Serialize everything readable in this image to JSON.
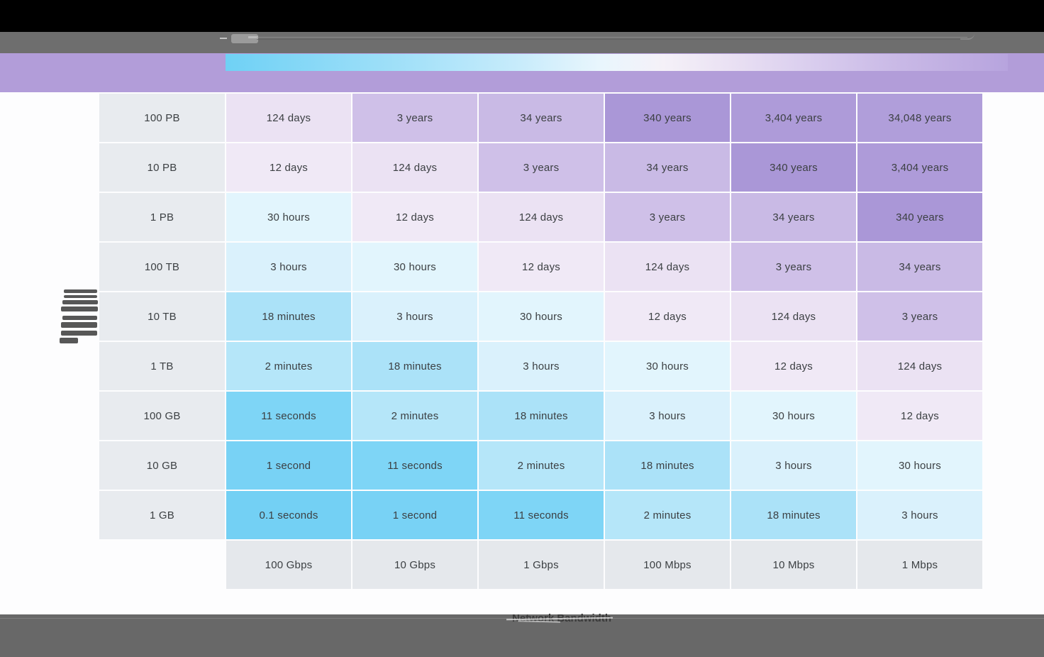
{
  "colors": {
    "top_bar": "#000000",
    "toolbar_bar": "#6e6e6e",
    "purple_band": "#b29dd9",
    "gradient_start": "#6fd1f5",
    "gradient_mid": "#f5f1f8",
    "gradient_end": "#b7a4de",
    "row_label_bg": "#e8ebef",
    "speed_label_bg": "#e5e8ec",
    "cell_text": "#3c4043",
    "bottom_bar": "#686868"
  },
  "chart_data": {
    "type": "heatmap",
    "title": "",
    "xlabel": "Network Bandwidth",
    "ylabel": "",
    "legend": "none",
    "grid": "off",
    "x_categories": [
      "100 Gbps",
      "10 Gbps",
      "1 Gbps",
      "100 Mbps",
      "10 Mbps",
      "1 Mbps"
    ],
    "y_categories": [
      "100 PB",
      "10 PB",
      "1 PB",
      "100 TB",
      "10 TB",
      "1 TB",
      "100 GB",
      "10 GB",
      "1 GB"
    ],
    "values": [
      [
        "124 days",
        "3 years",
        "34 years",
        "340 years",
        "3,404 years",
        "34,048 years"
      ],
      [
        "12 days",
        "124 days",
        "3 years",
        "34 years",
        "340 years",
        "3,404 years"
      ],
      [
        "30 hours",
        "12 days",
        "124 days",
        "3 years",
        "34 years",
        "340 years"
      ],
      [
        "3 hours",
        "30 hours",
        "12 days",
        "124 days",
        "3 years",
        "34 years"
      ],
      [
        "18 minutes",
        "3 hours",
        "30 hours",
        "12 days",
        "124 days",
        "3 years"
      ],
      [
        "2 minutes",
        "18 minutes",
        "3 hours",
        "30 hours",
        "12 days",
        "124 days"
      ],
      [
        "11 seconds",
        "2 minutes",
        "18 minutes",
        "3 hours",
        "30 hours",
        "12 days"
      ],
      [
        "1 second",
        "11 seconds",
        "2 minutes",
        "18 minutes",
        "3 hours",
        "30 hours"
      ],
      [
        "0.1 seconds",
        "1 second",
        "11 seconds",
        "2 minutes",
        "18 minutes",
        "3 hours"
      ]
    ],
    "value_colors": {
      "0.1 seconds": "#73d0f4",
      "1 second": "#78d2f5",
      "11 seconds": "#7ed5f6",
      "2 minutes": "#b5e6f9",
      "18 minutes": "#abe2f8",
      "3 hours": "#daf1fc",
      "30 hours": "#e2f5fd",
      "12 days": "#f0e9f6",
      "124 days": "#ebe2f3",
      "3 years": "#cfc0e8",
      "34 years": "#c9bae5",
      "340 years": "#aa97d7",
      "3,404 years": "#ae9bd9",
      "34,048 years": "#b09eda"
    }
  }
}
